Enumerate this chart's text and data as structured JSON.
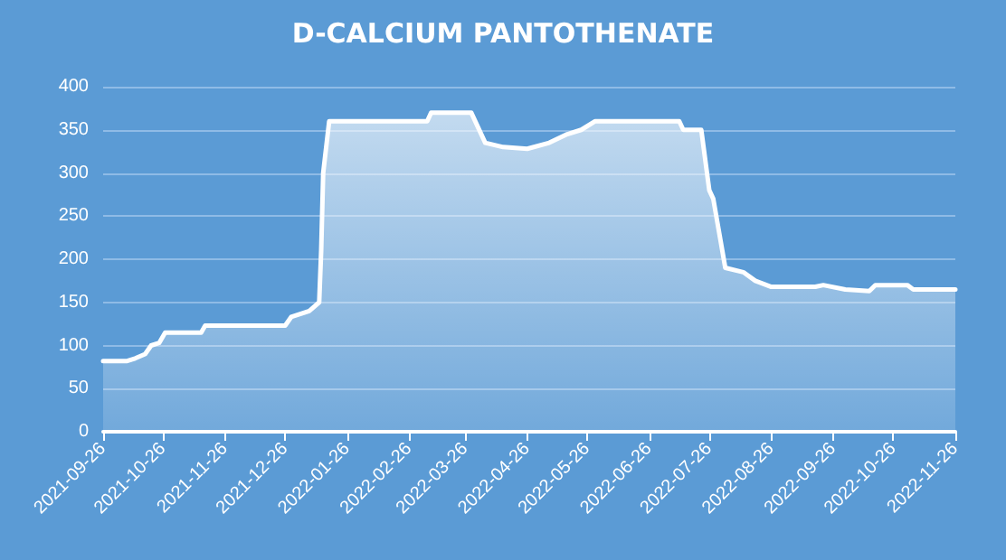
{
  "chart_data": {
    "type": "area",
    "title": "D-CALCIUM PANTOTHENATE",
    "x": [
      "2021-09-26",
      "2021-10-08",
      "2021-10-12",
      "2021-10-17",
      "2021-10-20",
      "2021-10-24",
      "2021-10-27",
      "2021-11-14",
      "2021-11-16",
      "2021-12-26",
      "2021-12-29",
      "2022-01-07",
      "2022-01-12",
      "2022-01-13",
      "2022-01-14",
      "2022-01-17",
      "2022-03-07",
      "2022-03-09",
      "2022-03-29",
      "2022-04-05",
      "2022-04-14",
      "2022-04-26",
      "2022-05-07",
      "2022-05-16",
      "2022-05-23",
      "2022-05-30",
      "2022-07-11",
      "2022-07-13",
      "2022-07-22",
      "2022-07-26",
      "2022-07-28",
      "2022-08-03",
      "2022-08-12",
      "2022-08-18",
      "2022-08-26",
      "2022-09-17",
      "2022-09-21",
      "2022-10-02",
      "2022-10-14",
      "2022-10-17",
      "2022-11-02",
      "2022-11-05",
      "2022-11-26"
    ],
    "series": [
      {
        "color": "#ffffff",
        "values": [
          82,
          82,
          85,
          90,
          100,
          103,
          115,
          115,
          123,
          123,
          133,
          140,
          150,
          210,
          300,
          360,
          360,
          370,
          370,
          335,
          330,
          328,
          335,
          345,
          350,
          360,
          360,
          350,
          350,
          280,
          270,
          190,
          185,
          175,
          168,
          168,
          170,
          165,
          163,
          170,
          170,
          165,
          165
        ]
      }
    ],
    "xlim": [
      "2021-09-26",
      "2022-11-26"
    ],
    "xticks": [
      "2021-09-26",
      "2021-10-26",
      "2021-11-26",
      "2021-12-26",
      "2022-01-26",
      "2022-02-26",
      "2022-03-26",
      "2022-04-26",
      "2022-05-26",
      "2022-06-26",
      "2022-07-26",
      "2022-08-26",
      "2022-09-26",
      "2022-10-26",
      "2022-11-26"
    ],
    "ylim": [
      0,
      400
    ],
    "yticks": [
      0,
      50,
      100,
      150,
      200,
      250,
      300,
      350,
      400
    ],
    "grid": "y",
    "marker": "none",
    "line_style": "solid"
  }
}
